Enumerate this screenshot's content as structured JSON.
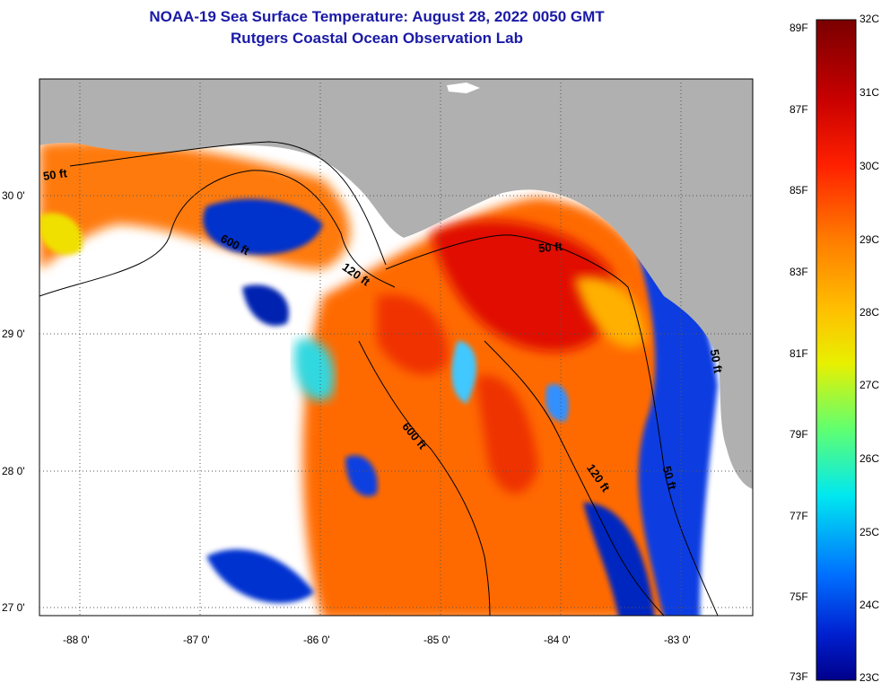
{
  "title": {
    "line1": "NOAA-19 Sea Surface Temperature:  August 28, 2022 0050 GMT",
    "line2": "Rutgers Coastal Ocean Observation Lab"
  },
  "map": {
    "longitude_ticks": [
      "-88 0'",
      "-87 0'",
      "-86 0'",
      "-85 0'",
      "-84 0'",
      "-83 0'"
    ],
    "latitude_ticks": [
      "30 0'",
      "29 0'",
      "28 0'",
      "27 0'"
    ],
    "contour_labels": [
      "50 ft",
      "600 ft",
      "120 ft",
      "50 ft",
      "600 ft",
      "120 ft",
      "50 ft",
      "50 ft"
    ]
  },
  "colorbar": {
    "fahrenheit_labels": [
      "89F",
      "87F",
      "85F",
      "83F",
      "81F",
      "79F",
      "77F",
      "75F",
      "73F"
    ],
    "celsius_labels": [
      "32C",
      "31C",
      "30C",
      "29C",
      "28C",
      "27C",
      "26C",
      "25C",
      "24C",
      "23C"
    ],
    "colors": {
      "top": "#7a0000",
      "red": "#e60000",
      "orange": "#ff8000",
      "yellow": "#f0f000",
      "green": "#40ff80",
      "cyan": "#00e0ff",
      "blue": "#0050ff",
      "bottom": "#00008a"
    }
  }
}
